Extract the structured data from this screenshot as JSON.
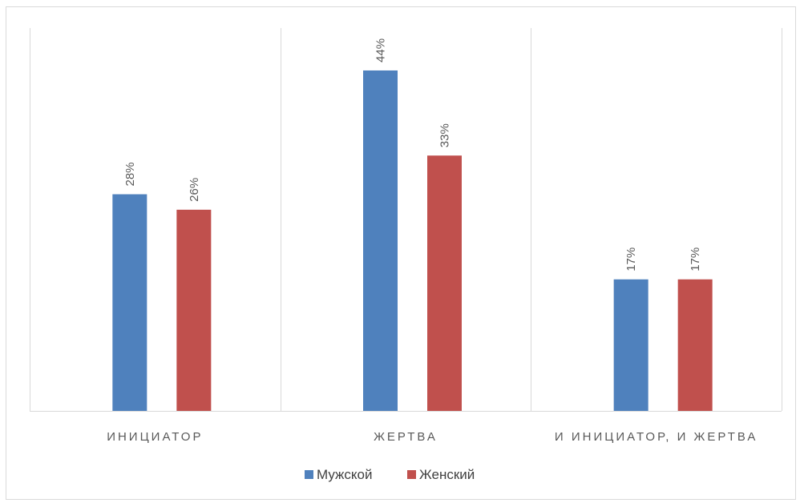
{
  "chart_data": {
    "type": "bar",
    "categories": [
      "ИНИЦИАТОР",
      "ЖЕРТВА",
      "И ИНИЦИАТОР, И ЖЕРТВА"
    ],
    "series": [
      {
        "name": "Мужской",
        "color": "#4F81BD",
        "values": [
          28,
          44,
          17
        ],
        "labels": [
          "28%",
          "44%",
          "17%"
        ]
      },
      {
        "name": "Женский",
        "color": "#C0504D",
        "values": [
          26,
          33,
          17
        ],
        "labels": [
          "26%",
          "33%",
          "17%"
        ]
      }
    ],
    "title": "",
    "xlabel": "",
    "ylabel": "",
    "ylim": [
      0,
      50
    ],
    "grid": "vertical-category-separators",
    "legend": "bottom-center",
    "data_labels": "rotated"
  }
}
